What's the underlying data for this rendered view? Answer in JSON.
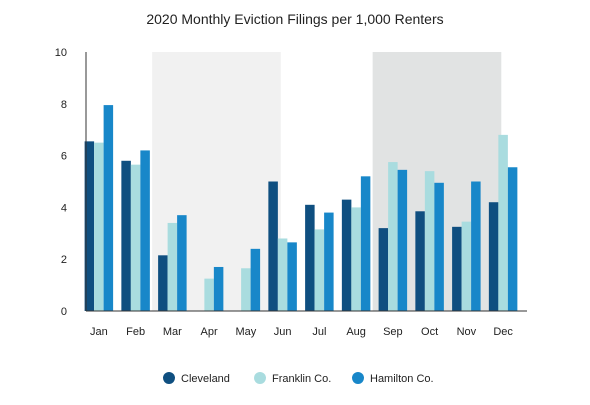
{
  "chart_data": {
    "type": "bar",
    "title": "2020 Monthly Eviction Filings per 1,000 Renters",
    "xlabel": "",
    "ylabel": "",
    "categories": [
      "Jan",
      "Feb",
      "Mar",
      "Apr",
      "May",
      "Jun",
      "Jul",
      "Aug",
      "Sep",
      "Oct",
      "Nov",
      "Dec"
    ],
    "ylim": [
      0,
      10
    ],
    "yticks": [
      0,
      2,
      4,
      6,
      8,
      10
    ],
    "grid": false,
    "legend_position": "bottom",
    "shaded_periods": [
      {
        "from": "Mar",
        "to": "Jun",
        "color": "#f1f1f1"
      },
      {
        "from": "Sep",
        "to": "Dec",
        "color": "#e1e3e3"
      }
    ],
    "series": [
      {
        "name": "Cleveland",
        "color": "#0f4f80",
        "values": [
          6.55,
          5.8,
          2.15,
          0,
          0,
          5.0,
          4.1,
          4.3,
          3.2,
          3.85,
          3.25,
          4.2
        ]
      },
      {
        "name": "Franklin Co.",
        "color": "#a9dcdf",
        "values": [
          6.5,
          5.65,
          3.4,
          1.25,
          1.65,
          2.8,
          3.15,
          4.0,
          5.75,
          5.4,
          3.45,
          6.8
        ]
      },
      {
        "name": "Hamilton Co.",
        "color": "#1887c9",
        "values": [
          7.95,
          6.2,
          3.7,
          1.7,
          2.4,
          2.65,
          3.8,
          5.2,
          5.45,
          4.95,
          5.0,
          5.55
        ]
      }
    ]
  }
}
